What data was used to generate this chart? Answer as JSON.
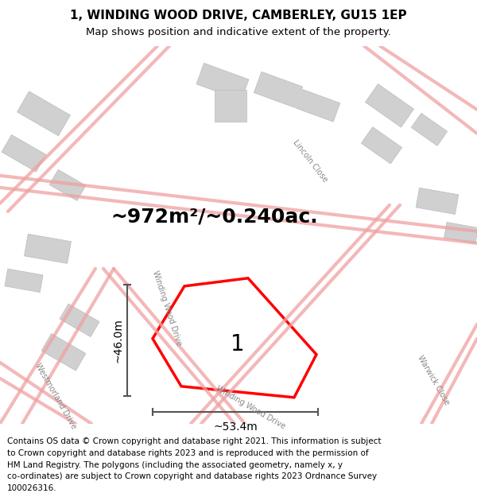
{
  "title": "1, WINDING WOOD DRIVE, CAMBERLEY, GU15 1EP",
  "subtitle": "Map shows position and indicative extent of the property.",
  "area_label": "~972m²/~0.240ac.",
  "dim_h": "~53.4m",
  "dim_v": "~46.0m",
  "plot_label": "1",
  "road_color": "#f0a0a0",
  "property_color": "#ff0000",
  "dim_color": "#555555",
  "title_fontsize": 11,
  "subtitle_fontsize": 9.5,
  "area_fontsize": 18,
  "plot_label_fontsize": 20,
  "dim_fontsize": 10,
  "copyright_fontsize": 7.5,
  "street_fontsize": 7,
  "copyright_lines": [
    "Contains OS data © Crown copyright and database right 2021. This information is subject",
    "to Crown copyright and database rights 2023 and is reproduced with the permission of",
    "HM Land Registry. The polygons (including the associated geometry, namely x, y",
    "co-ordinates) are subject to Crown copyright and database rights 2023 Ordnance Survey",
    "100026316."
  ]
}
